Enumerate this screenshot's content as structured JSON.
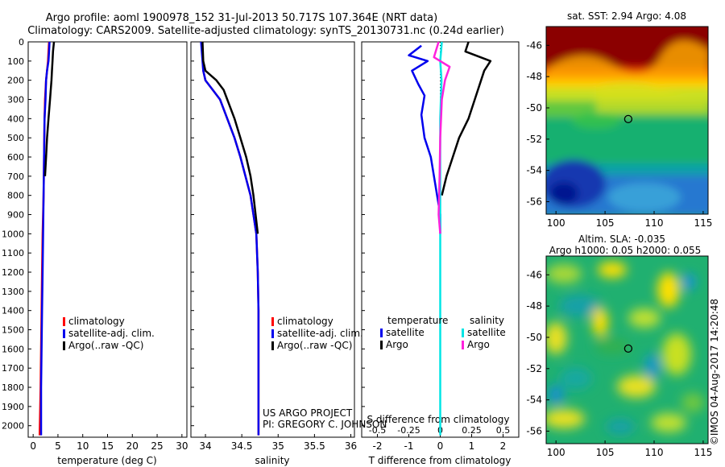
{
  "title": {
    "line1": "Argo profile: aoml 1900978_152 31-Jul-2013 50.717S 107.364E (NRT data)",
    "line2": "Climatology: CARS2009. Satellite-adjusted climatology: synTS_20130731.nc (0.24d earlier)"
  },
  "credit": {
    "project": "US ARGO PROJECT",
    "pi": "PI: GREGORY C. JOHNSON",
    "imos": "©IMOS 04-Aug-2017 14:20:48"
  },
  "colors": {
    "climatology": "#ff0000",
    "satellite": "#0000ee",
    "argo": "#000000",
    "salinity_satellite": "#00e5e5",
    "salinity_argo": "#ff22dd"
  },
  "chart_data": [
    {
      "type": "line",
      "id": "temperature-profile",
      "xlabel": "temperature (deg C)",
      "xlim": [
        -1,
        31
      ],
      "xticks": [
        0,
        5,
        10,
        15,
        20,
        25,
        30
      ],
      "ylim": [
        2060,
        0
      ],
      "yticks": [
        0,
        100,
        200,
        300,
        400,
        500,
        600,
        700,
        800,
        900,
        1000,
        1100,
        1200,
        1300,
        1400,
        1500,
        1600,
        1700,
        1800,
        1900,
        2000
      ],
      "legend": [
        "climatology",
        "satellite-adj. clim.",
        "Argo(..raw -QC)"
      ],
      "series": [
        {
          "name": "climatology",
          "color": "#ff0000",
          "x": [
            3.2,
            3.1,
            3.0,
            2.8,
            2.6,
            2.4,
            2.3,
            2.2,
            2.1,
            1.9,
            1.8,
            1.7,
            1.6,
            1.5,
            1.3
          ],
          "y": [
            0,
            50,
            100,
            150,
            200,
            300,
            400,
            600,
            800,
            1000,
            1200,
            1400,
            1600,
            1800,
            2050
          ]
        },
        {
          "name": "satellite-adj. clim.",
          "color": "#0000ee",
          "x": [
            3.3,
            3.2,
            3.1,
            2.8,
            2.6,
            2.5,
            2.3,
            2.2,
            2.1,
            2.0,
            1.9,
            1.8,
            1.7,
            1.6,
            1.6
          ],
          "y": [
            0,
            50,
            100,
            150,
            200,
            300,
            400,
            600,
            800,
            1000,
            1200,
            1400,
            1600,
            1800,
            2050
          ]
        },
        {
          "name": "Argo(..raw -QC)",
          "color": "#000000",
          "x": [
            4.2,
            4.0,
            3.9,
            3.8,
            3.7,
            3.4,
            3.1,
            2.8,
            2.6,
            2.4
          ],
          "y": [
            0,
            50,
            100,
            150,
            200,
            300,
            400,
            500,
            600,
            700
          ]
        }
      ]
    },
    {
      "type": "line",
      "id": "salinity-profile",
      "xlabel": "salinity",
      "xlim": [
        33.8,
        36.05
      ],
      "xticks": [
        34,
        34.5,
        35,
        35.5,
        36
      ],
      "ylim": [
        2060,
        0
      ],
      "legend": [
        "climatology",
        "satellite-adj. clim.",
        "Argo(..raw -QC)"
      ],
      "series": [
        {
          "name": "climatology",
          "color": "#ff0000",
          "x": [
            33.95,
            33.96,
            33.97,
            34.0,
            34.1,
            34.2,
            34.3,
            34.4,
            34.48,
            34.55,
            34.62,
            34.66,
            34.7,
            34.72,
            34.73,
            34.73,
            34.73,
            34.73
          ],
          "y": [
            0,
            50,
            150,
            200,
            250,
            300,
            400,
            500,
            600,
            700,
            800,
            900,
            1000,
            1200,
            1400,
            1600,
            1800,
            2050
          ]
        },
        {
          "name": "satellite-adj. clim.",
          "color": "#0000ee",
          "x": [
            33.94,
            33.95,
            33.97,
            34.0,
            34.1,
            34.2,
            34.3,
            34.4,
            34.48,
            34.55,
            34.62,
            34.66,
            34.7,
            34.72,
            34.73,
            34.73,
            34.73,
            34.73
          ],
          "y": [
            0,
            50,
            150,
            200,
            250,
            300,
            400,
            500,
            600,
            700,
            800,
            900,
            1000,
            1200,
            1400,
            1600,
            1800,
            2050
          ]
        },
        {
          "name": "Argo(..raw -QC)",
          "color": "#000000",
          "x": [
            33.96,
            33.97,
            34.0,
            34.15,
            34.25,
            34.3,
            34.4,
            34.48,
            34.56,
            34.62,
            34.66,
            34.69,
            34.72
          ],
          "y": [
            0,
            100,
            150,
            200,
            250,
            300,
            400,
            500,
            600,
            700,
            800,
            900,
            1000
          ]
        }
      ]
    },
    {
      "type": "line",
      "id": "difference-profile",
      "xlabel": "T difference from climatology",
      "xlabel_top": "S difference from climatology",
      "xlim": [
        -2.5,
        2.5
      ],
      "xticks": [
        -2,
        -1,
        0,
        1,
        2
      ],
      "xticks_salinity": [
        "-0.5",
        "-0.25",
        "0",
        "0.25",
        "0.5"
      ],
      "ylim": [
        2060,
        0
      ],
      "legend_temperature": {
        "title": "temperature",
        "entries": [
          "satellite",
          "Argo"
        ]
      },
      "legend_salinity": {
        "title": "salinity",
        "entries": [
          "satellite",
          "Argo"
        ]
      },
      "series": [
        {
          "name": "temperature satellite",
          "color": "#0000ee",
          "x": [
            -0.6,
            -1.0,
            -0.4,
            -0.9,
            -0.7,
            -0.5,
            -0.6,
            -0.5,
            -0.3,
            -0.1,
            0.0,
            0.0
          ],
          "y": [
            20,
            70,
            100,
            150,
            220,
            280,
            380,
            500,
            600,
            800,
            900,
            1000
          ]
        },
        {
          "name": "temperature Argo",
          "color": "#000000",
          "x": [
            0.9,
            0.8,
            1.6,
            1.4,
            1.3,
            1.1,
            0.9,
            0.6,
            0.4,
            0.2,
            0.05
          ],
          "y": [
            0,
            50,
            100,
            150,
            200,
            300,
            400,
            500,
            600,
            700,
            800
          ]
        },
        {
          "name": "salinity satellite",
          "color": "#00e5e5",
          "x": [
            0.05,
            0.0,
            0.04,
            0.0,
            0.0,
            0.0,
            0.0,
            0.0
          ],
          "y": [
            0,
            100,
            200,
            400,
            800,
            1200,
            1600,
            2050
          ]
        },
        {
          "name": "salinity Argo",
          "color": "#ff22dd",
          "x": [
            -0.05,
            -0.2,
            0.3,
            0.15,
            0.05,
            0.0,
            -0.02,
            -0.05,
            0.0
          ],
          "y": [
            0,
            80,
            130,
            200,
            300,
            500,
            700,
            900,
            1000
          ]
        }
      ]
    },
    {
      "type": "heatmap",
      "id": "sst-map",
      "title": "sat. SST: 2.94 Argo: 4.08",
      "xlim": [
        99,
        115.5
      ],
      "ylim": [
        -56.8,
        -44.8
      ],
      "xticks": [
        100,
        105,
        110,
        115
      ],
      "yticks": [
        -46,
        -48,
        -50,
        -52,
        -54,
        -56
      ],
      "marker": {
        "lon": 107.364,
        "lat": -50.717
      }
    },
    {
      "type": "heatmap",
      "id": "sla-map",
      "title": "Altim. SLA: -0.035",
      "subtitle": "Argo h1000: 0.05 h2000: 0.055",
      "xlim": [
        99,
        115.5
      ],
      "ylim": [
        -56.8,
        -44.8
      ],
      "xticks": [
        100,
        105,
        110,
        115
      ],
      "yticks": [
        -46,
        -48,
        -50,
        -52,
        -54,
        -56
      ],
      "marker": {
        "lon": 107.364,
        "lat": -50.717
      }
    }
  ]
}
